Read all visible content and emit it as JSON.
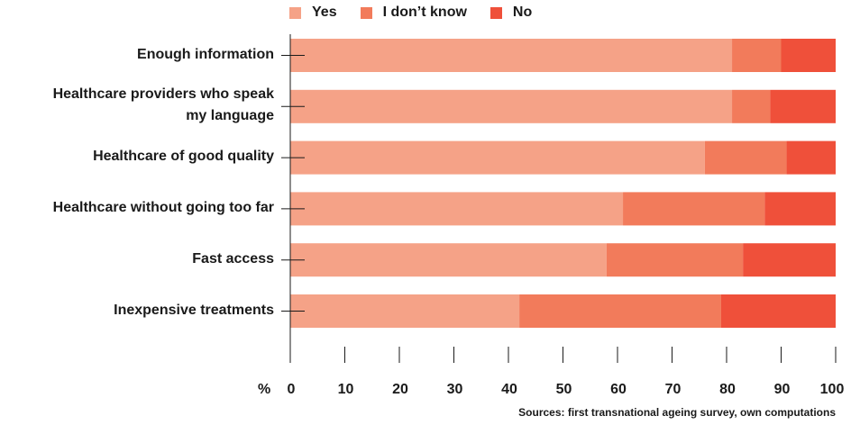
{
  "chart_data": {
    "type": "bar",
    "orientation": "horizontal",
    "stacked": true,
    "categories": [
      "Enough information",
      "Healthcare providers who speak my language",
      "Healthcare of good quality",
      "Healthcare without going too far",
      "Fast access",
      "Inexpensive treatments"
    ],
    "category_lines": [
      [
        "Enough information"
      ],
      [
        "Healthcare providers who speak",
        "my language"
      ],
      [
        "Healthcare of good quality"
      ],
      [
        "Healthcare without going too far"
      ],
      [
        "Fast access"
      ],
      [
        "Inexpensive treatments"
      ]
    ],
    "series": [
      {
        "name": "Yes",
        "color": "#f5a287",
        "values": [
          81,
          81,
          76,
          61,
          58,
          42
        ]
      },
      {
        "name": "I don’t know",
        "color": "#f27b5b",
        "values": [
          9,
          7,
          15,
          26,
          25,
          37
        ]
      },
      {
        "name": "No",
        "color": "#ef503a",
        "values": [
          10,
          12,
          9,
          13,
          17,
          21
        ]
      }
    ],
    "x_unit_label": "%",
    "xlim": [
      0,
      100
    ],
    "xticks": [
      0,
      10,
      20,
      30,
      40,
      50,
      60,
      70,
      80,
      90,
      100
    ],
    "legend_position": "top",
    "grid": false
  },
  "source_note": "Sources: first transnational ageing survey, own computations"
}
